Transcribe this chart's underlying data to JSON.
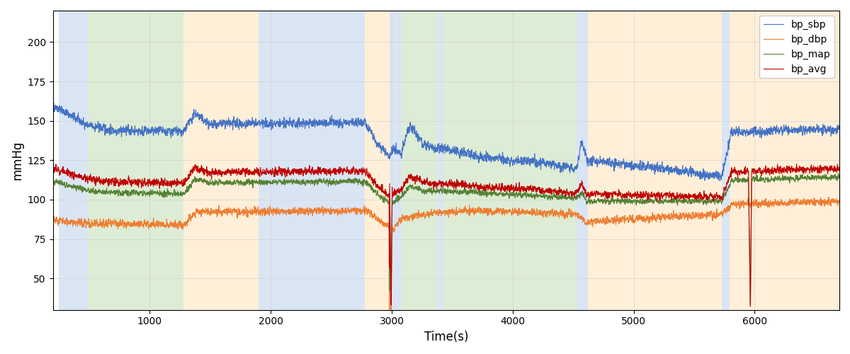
{
  "xlabel": "Time(s)",
  "ylabel": "mmHg",
  "xlim": [
    200,
    6700
  ],
  "ylim": [
    30,
    220
  ],
  "yticks": [
    50,
    75,
    100,
    125,
    150,
    175,
    200
  ],
  "xticks": [
    1000,
    2000,
    3000,
    4000,
    5000,
    6000
  ],
  "legend_labels": [
    "bp_sbp",
    "bp_dbp",
    "bp_map",
    "bp_avg"
  ],
  "line_colors": [
    "#4472C4",
    "#ED7D31",
    "#548235",
    "#C00000"
  ],
  "line_width": 0.8,
  "bg_bands": [
    {
      "xmin": 250,
      "xmax": 490,
      "color": "#AEC6E8",
      "alpha": 0.45
    },
    {
      "xmin": 490,
      "xmax": 1280,
      "color": "#B5D5A0",
      "alpha": 0.45
    },
    {
      "xmin": 1280,
      "xmax": 1900,
      "color": "#FFDCAA",
      "alpha": 0.45
    },
    {
      "xmin": 1900,
      "xmax": 2780,
      "color": "#AEC6E8",
      "alpha": 0.45
    },
    {
      "xmin": 2780,
      "xmax": 2980,
      "color": "#FFDCAA",
      "alpha": 0.45
    },
    {
      "xmin": 2980,
      "xmax": 3080,
      "color": "#AEC6E8",
      "alpha": 0.45
    },
    {
      "xmin": 3080,
      "xmax": 3380,
      "color": "#B5D5A0",
      "alpha": 0.45
    },
    {
      "xmin": 3380,
      "xmax": 3430,
      "color": "#AEC6E8",
      "alpha": 0.45
    },
    {
      "xmin": 3430,
      "xmax": 3700,
      "color": "#B5D5A0",
      "alpha": 0.45
    },
    {
      "xmin": 3700,
      "xmax": 4530,
      "color": "#B5D5A0",
      "alpha": 0.45
    },
    {
      "xmin": 4530,
      "xmax": 4620,
      "color": "#AEC6E8",
      "alpha": 0.45
    },
    {
      "xmin": 4620,
      "xmax": 5730,
      "color": "#FFDCAA",
      "alpha": 0.45
    },
    {
      "xmin": 5730,
      "xmax": 5790,
      "color": "#AEC6E8",
      "alpha": 0.45
    },
    {
      "xmin": 5790,
      "xmax": 6700,
      "color": "#FFDCAA",
      "alpha": 0.45
    }
  ],
  "seed": 42,
  "dt": 1,
  "t_start": 200,
  "t_end": 6700
}
